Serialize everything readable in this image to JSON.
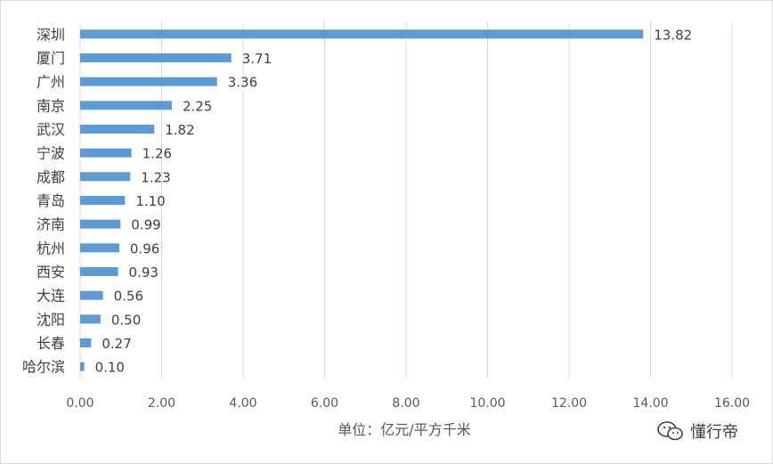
{
  "chart_data": {
    "type": "bar",
    "orientation": "horizontal",
    "categories": [
      "深圳",
      "厦门",
      "广州",
      "南京",
      "武汉",
      "宁波",
      "成都",
      "青岛",
      "济南",
      "杭州",
      "西安",
      "大连",
      "沈阳",
      "长春",
      "哈尔滨"
    ],
    "values": [
      13.82,
      3.71,
      3.36,
      2.25,
      1.82,
      1.26,
      1.23,
      1.1,
      0.99,
      0.96,
      0.93,
      0.56,
      0.5,
      0.27,
      0.1
    ],
    "value_labels": [
      "13.82",
      "3.71",
      "3.36",
      "2.25",
      "1.82",
      "1.26",
      "1.23",
      "1.10",
      "0.99",
      "0.96",
      "0.93",
      "0.56",
      "0.50",
      "0.27",
      "0.10"
    ],
    "xlabel": "单位：亿元/平方千米",
    "xlim": [
      0,
      16
    ],
    "xticks": [
      0,
      2,
      4,
      6,
      8,
      10,
      12,
      14,
      16
    ],
    "xtick_labels": [
      "0.00",
      "2.00",
      "4.00",
      "6.00",
      "8.00",
      "10.00",
      "12.00",
      "14.00",
      "16.00"
    ],
    "grid": "vertical",
    "legend": "none",
    "colors": {
      "bar": "#5b9bd5",
      "grid": "#d9d9d9",
      "text": "#404040",
      "axis_text": "#595959"
    }
  },
  "watermark": {
    "icon": "wechat-icon",
    "text": "懂行帝"
  }
}
